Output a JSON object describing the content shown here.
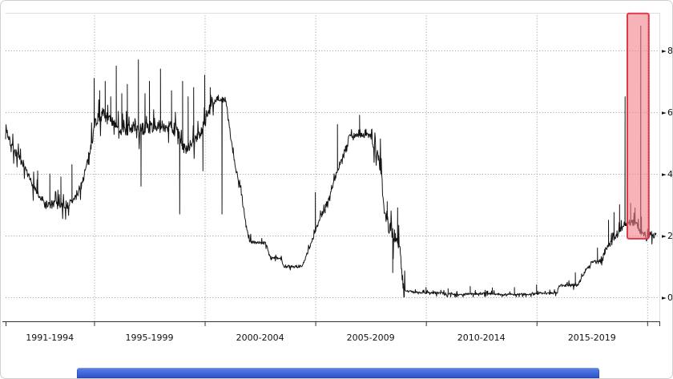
{
  "window": {
    "background": "#ffffff",
    "frame_border": "#cfcfcf"
  },
  "axis": {
    "arrow_glyph": "►",
    "label_color": "#111111"
  },
  "taskbar": {
    "gradient_top": "#5b82ea",
    "gradient_bottom": "#2a50c8"
  },
  "chart_data": {
    "type": "line",
    "x_domain": [
      1991.0,
      2020.55
    ],
    "x_boundaries": [
      1991,
      1995,
      2000,
      2005,
      2010,
      2015,
      2020
    ],
    "x_tick_labels": [
      "1991-1994",
      "1995-1999",
      "2000-2004",
      "2005-2009",
      "2010-2014",
      "2015-2019"
    ],
    "y_axis": {
      "ticks": [
        0,
        2,
        4,
        6,
        8
      ],
      "range": [
        0,
        9.2
      ],
      "side": "right"
    },
    "grid": true,
    "legend": false,
    "line_color": "#141414",
    "grid_color": "#999999",
    "axis_color": "#333333",
    "noise_seed": 7,
    "anchors": [
      [
        1991.0,
        5.6
      ],
      [
        1991.15,
        5.1
      ],
      [
        1991.45,
        4.7
      ],
      [
        1991.8,
        4.2
      ],
      [
        1992.1,
        3.8
      ],
      [
        1992.5,
        3.3
      ],
      [
        1992.8,
        3.0
      ],
      [
        1993.8,
        3.0
      ],
      [
        1994.1,
        3.15
      ],
      [
        1994.45,
        3.7
      ],
      [
        1994.75,
        4.5
      ],
      [
        1995.05,
        5.7
      ],
      [
        1995.4,
        5.95
      ],
      [
        1995.75,
        5.7
      ],
      [
        1996.1,
        5.45
      ],
      [
        1996.9,
        5.4
      ],
      [
        1997.4,
        5.5
      ],
      [
        1998.2,
        5.55
      ],
      [
        1998.75,
        5.45
      ],
      [
        1999.0,
        4.8
      ],
      [
        1999.4,
        4.95
      ],
      [
        1999.8,
        5.3
      ],
      [
        2000.1,
        5.8
      ],
      [
        2000.4,
        6.45
      ],
      [
        2000.95,
        6.4
      ],
      [
        2001.15,
        5.3
      ],
      [
        2001.4,
        4.2
      ],
      [
        2001.65,
        3.4
      ],
      [
        2001.9,
        2.2
      ],
      [
        2002.05,
        1.8
      ],
      [
        2002.75,
        1.75
      ],
      [
        2002.95,
        1.3
      ],
      [
        2003.45,
        1.25
      ],
      [
        2003.6,
        1.0
      ],
      [
        2004.4,
        1.0
      ],
      [
        2004.6,
        1.35
      ],
      [
        2004.9,
        1.95
      ],
      [
        2005.25,
        2.6
      ],
      [
        2005.6,
        3.2
      ],
      [
        2005.95,
        4.0
      ],
      [
        2006.3,
        4.7
      ],
      [
        2006.55,
        5.25
      ],
      [
        2007.55,
        5.25
      ],
      [
        2007.75,
        4.8
      ],
      [
        2007.95,
        4.3
      ],
      [
        2008.1,
        3.0
      ],
      [
        2008.35,
        2.2
      ],
      [
        2008.6,
        2.0
      ],
      [
        2008.8,
        1.6
      ],
      [
        2008.92,
        0.6
      ],
      [
        2009.0,
        0.22
      ],
      [
        2009.5,
        0.16
      ],
      [
        2010.5,
        0.14
      ],
      [
        2011.5,
        0.09
      ],
      [
        2012.5,
        0.13
      ],
      [
        2013.5,
        0.09
      ],
      [
        2014.5,
        0.1
      ],
      [
        2015.6,
        0.13
      ],
      [
        2015.95,
        0.15
      ],
      [
        2016.02,
        0.37
      ],
      [
        2016.9,
        0.4
      ],
      [
        2016.98,
        0.55
      ],
      [
        2017.05,
        0.66
      ],
      [
        2017.3,
        0.95
      ],
      [
        2017.55,
        1.15
      ],
      [
        2017.95,
        1.2
      ],
      [
        2018.05,
        1.45
      ],
      [
        2018.3,
        1.7
      ],
      [
        2018.55,
        1.92
      ],
      [
        2018.8,
        2.18
      ],
      [
        2019.0,
        2.4
      ],
      [
        2019.45,
        2.42
      ],
      [
        2019.6,
        2.25
      ],
      [
        2019.78,
        2.05
      ],
      [
        2019.95,
        1.9
      ],
      [
        2020.15,
        2.05
      ],
      [
        2020.42,
        2.0
      ]
    ],
    "spikes": [
      [
        1992.45,
        4.1
      ],
      [
        1993.0,
        4.0
      ],
      [
        1993.5,
        3.9
      ],
      [
        1994.0,
        4.3
      ],
      [
        1995.0,
        7.1
      ],
      [
        1995.25,
        6.7
      ],
      [
        1995.5,
        7.0
      ],
      [
        1995.75,
        6.5
      ],
      [
        1996.0,
        7.5
      ],
      [
        1996.25,
        6.6
      ],
      [
        1996.5,
        6.9
      ],
      [
        1997.0,
        7.7
      ],
      [
        1997.3,
        6.6
      ],
      [
        1997.5,
        7.0
      ],
      [
        1998.0,
        7.4
      ],
      [
        1998.5,
        6.7
      ],
      [
        1999.0,
        7.0
      ],
      [
        1999.25,
        6.5
      ],
      [
        1999.5,
        6.8
      ],
      [
        2000.0,
        7.2
      ],
      [
        2000.25,
        6.8
      ],
      [
        1997.12,
        3.6
      ],
      [
        1998.87,
        2.7
      ],
      [
        1999.92,
        4.1
      ],
      [
        2000.78,
        2.7
      ],
      [
        2005.0,
        3.4
      ],
      [
        2006.0,
        5.6
      ],
      [
        2007.0,
        5.9
      ],
      [
        2008.25,
        3.1
      ],
      [
        2008.5,
        0.8
      ],
      [
        2008.72,
        2.9
      ],
      [
        2010.0,
        0.32
      ],
      [
        2011.0,
        0.28
      ],
      [
        2012.0,
        0.35
      ],
      [
        2013.0,
        0.3
      ],
      [
        2014.0,
        0.32
      ],
      [
        2015.0,
        0.4
      ],
      [
        2016.75,
        0.8
      ],
      [
        2017.75,
        1.6
      ],
      [
        2018.25,
        2.5
      ],
      [
        2018.5,
        2.75
      ],
      [
        2018.75,
        3.0
      ],
      [
        2018.999,
        6.5
      ],
      [
        2019.25,
        3.05
      ],
      [
        2019.45,
        2.9
      ],
      [
        2019.71,
        8.8
      ],
      [
        2019.74,
        2.6
      ]
    ],
    "noise_regions": [
      [
        1991.0,
        1994.7,
        0.15
      ],
      [
        1994.7,
        2000.5,
        0.2
      ],
      [
        2000.5,
        2002.1,
        0.1
      ],
      [
        2002.1,
        2004.6,
        0.05
      ],
      [
        2004.6,
        2007.5,
        0.08
      ],
      [
        2007.5,
        2009.05,
        0.28
      ],
      [
        2009.05,
        2015.9,
        0.035
      ],
      [
        2015.9,
        2017.95,
        0.05
      ],
      [
        2017.95,
        2020.42,
        0.1
      ]
    ],
    "highlight_region": {
      "x_start": 2019.1,
      "x_end": 2020.07,
      "y_top": 9.2,
      "y_bottom": 1.9,
      "fill": "rgba(243,128,138,0.6)",
      "border": "#de3a4c"
    }
  }
}
